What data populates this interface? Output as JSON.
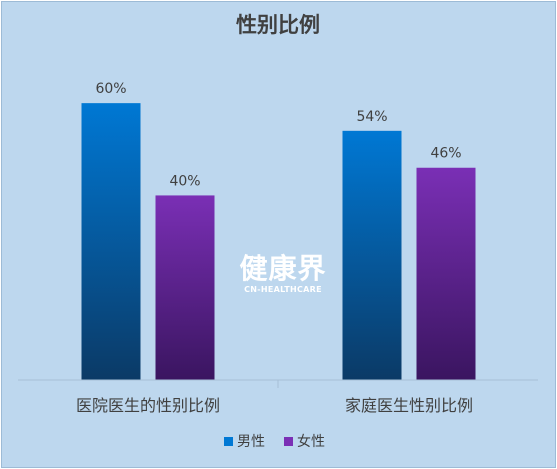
{
  "chart_data": {
    "type": "bar",
    "title": "性别比例",
    "categories": [
      "医院医生的性别比例",
      "家庭医生性别比例"
    ],
    "series": [
      {
        "name": "男性",
        "values": [
          60,
          54
        ],
        "labels": [
          "60%",
          "54%"
        ],
        "color_top": "#0078d4",
        "color_bottom": "#0b3a66"
      },
      {
        "name": "女性",
        "values": [
          40,
          46
        ],
        "labels": [
          "40%",
          "46%"
        ],
        "color_top": "#7a2fb5",
        "color_bottom": "#3a1560"
      }
    ],
    "ylim": [
      0,
      70
    ],
    "grid": false,
    "legend_position": "bottom"
  },
  "watermark": {
    "main": "健康界",
    "sub": "CN-HEALTHCARE"
  }
}
